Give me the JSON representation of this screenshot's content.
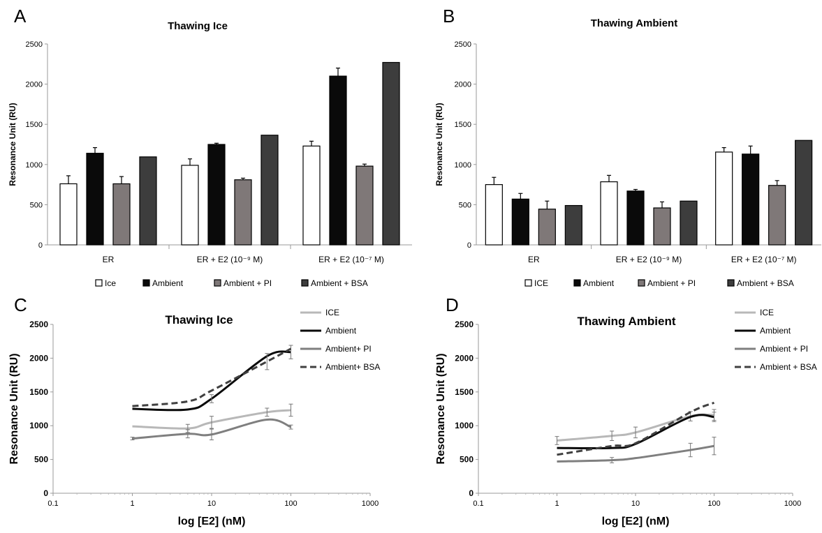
{
  "panels": {
    "A": {
      "letter": "A"
    },
    "B": {
      "letter": "B"
    },
    "C": {
      "letter": "C"
    },
    "D": {
      "letter": "D"
    }
  },
  "chart_data": [
    {
      "id": "A",
      "type": "bar",
      "title": "Thawing Ice",
      "ylabel": "Resonance Unit (RU)",
      "xlabel": "",
      "ylim": [
        0,
        2500
      ],
      "yticks": [
        0,
        500,
        1000,
        1500,
        2000,
        2500
      ],
      "categories": [
        "ER",
        "ER + E2 (10⁻⁹ M)",
        "ER + E2 (10⁻⁷ M)"
      ],
      "series": [
        {
          "name": "Ice",
          "color": "#ffffff",
          "values": [
            760,
            990,
            1230
          ],
          "errors": [
            100,
            80,
            60
          ]
        },
        {
          "name": "Ambient",
          "color": "#0a0a0a",
          "values": [
            1140,
            1250,
            2100
          ],
          "errors": [
            70,
            15,
            100
          ]
        },
        {
          "name": "Ambient + PI",
          "color": "#7f7878",
          "values": [
            760,
            810,
            980
          ],
          "errors": [
            90,
            20,
            25
          ]
        },
        {
          "name": "Ambient + BSA",
          "color": "#3d3d3d",
          "values": [
            1095,
            1365,
            2270
          ],
          "errors": [
            null,
            null,
            null
          ]
        }
      ],
      "grid": false,
      "legend_position": "bottom"
    },
    {
      "id": "B",
      "type": "bar",
      "title": "Thawing Ambient",
      "ylabel": "Resonance Unit (RU)",
      "xlabel": "",
      "ylim": [
        0,
        2500
      ],
      "yticks": [
        0,
        500,
        1000,
        1500,
        2000,
        2500
      ],
      "categories": [
        "ER",
        "ER + E2 (10⁻⁹ M)",
        "ER + E2 (10⁻⁷ M)"
      ],
      "series": [
        {
          "name": "ICE",
          "color": "#ffffff",
          "values": [
            750,
            785,
            1155
          ],
          "errors": [
            90,
            80,
            55
          ]
        },
        {
          "name": "Ambient",
          "color": "#0a0a0a",
          "values": [
            570,
            670,
            1130
          ],
          "errors": [
            70,
            20,
            100
          ]
        },
        {
          "name": "Ambient + PI",
          "color": "#7f7878",
          "values": [
            445,
            460,
            740
          ],
          "errors": [
            100,
            75,
            60
          ]
        },
        {
          "name": "Ambient + BSA",
          "color": "#3d3d3d",
          "values": [
            490,
            545,
            1300
          ],
          "errors": [
            null,
            null,
            null
          ]
        }
      ],
      "grid": false,
      "legend_position": "bottom"
    },
    {
      "id": "C",
      "type": "line",
      "title": "Thawing Ice",
      "xlabel": "log [E2]  (nM)",
      "ylabel": "Resonance Unit (RU)",
      "xscale": "log",
      "xlim": [
        0.1,
        1000
      ],
      "xticks": [
        "0.1",
        "1",
        "10",
        "100",
        "1000"
      ],
      "ylim": [
        0,
        2500
      ],
      "yticks": [
        0,
        500,
        1000,
        1500,
        2000,
        2500
      ],
      "x": [
        1,
        5,
        10,
        50,
        100
      ],
      "series": [
        {
          "name": "ICE",
          "color": "#b8b8b8",
          "dash": false,
          "values": [
            990,
            960,
            1050,
            1200,
            1230
          ],
          "errors": [
            null,
            60,
            90,
            60,
            90
          ]
        },
        {
          "name": "Ambient",
          "color": "#0a0a0a",
          "dash": false,
          "values": [
            1250,
            1240,
            1400,
            2030,
            2090
          ],
          "errors": [
            null,
            null,
            60,
            null,
            100
          ]
        },
        {
          "name": "Ambient+ PI",
          "color": "#7f7f7f",
          "dash": false,
          "values": [
            810,
            880,
            870,
            1090,
            980
          ],
          "errors": [
            20,
            60,
            80,
            null,
            30
          ]
        },
        {
          "name": "Ambient+ BSA",
          "color": "#404040",
          "dash": true,
          "values": [
            1290,
            1360,
            1520,
            1950,
            2140
          ],
          "errors": [
            null,
            null,
            null,
            120,
            null
          ]
        }
      ],
      "grid": false,
      "legend_position": "top-right"
    },
    {
      "id": "D",
      "type": "line",
      "title": "Thawing Ambient",
      "xlabel": "log [E2]  (nM)",
      "ylabel": "Resonance Unit (RU)",
      "xscale": "log",
      "xlim": [
        0.1,
        1000
      ],
      "xticks": [
        "0.1",
        "1",
        "10",
        "100",
        "1000"
      ],
      "ylim": [
        0,
        2500
      ],
      "yticks": [
        0,
        500,
        1000,
        1500,
        2000,
        2500
      ],
      "x": [
        1,
        5,
        10,
        50,
        100
      ],
      "series": [
        {
          "name": "ICE",
          "color": "#b8b8b8",
          "dash": false,
          "values": [
            780,
            850,
            900,
            1140,
            1160
          ],
          "errors": [
            60,
            70,
            80,
            70,
            80
          ]
        },
        {
          "name": "Ambient",
          "color": "#0a0a0a",
          "dash": false,
          "values": [
            670,
            670,
            730,
            1130,
            1130
          ],
          "errors": [
            null,
            null,
            null,
            null,
            70
          ]
        },
        {
          "name": "Ambient + PI",
          "color": "#7f7f7f",
          "dash": false,
          "values": [
            470,
            490,
            520,
            640,
            700
          ],
          "errors": [
            null,
            40,
            null,
            100,
            130
          ]
        },
        {
          "name": "Ambient + BSA",
          "color": "#404040",
          "dash": true,
          "values": [
            570,
            700,
            740,
            1200,
            1340
          ],
          "errors": [
            null,
            null,
            null,
            null,
            null
          ]
        }
      ],
      "grid": false,
      "legend_position": "top-right"
    }
  ]
}
